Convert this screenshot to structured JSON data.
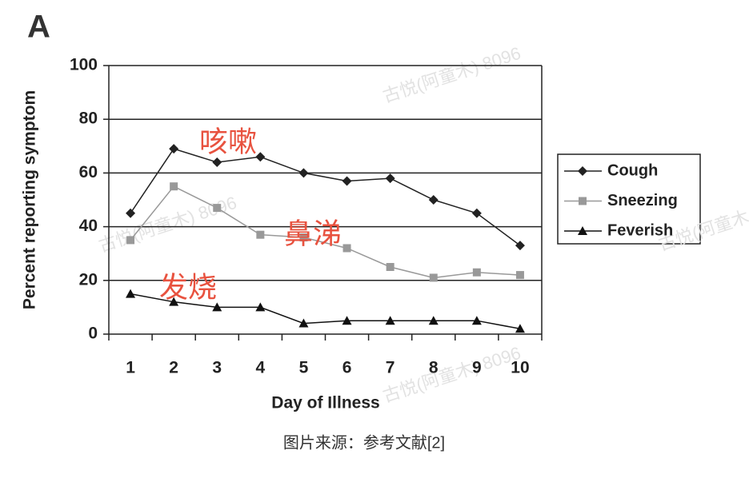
{
  "panel_label": "A",
  "chart_data": {
    "type": "line",
    "y_label": "Percent reporting symptom",
    "x_label": "Day of Illness",
    "categories": [
      "1",
      "2",
      "3",
      "4",
      "5",
      "6",
      "7",
      "8",
      "9",
      "10"
    ],
    "series": [
      {
        "name": "Cough",
        "color": "#222222",
        "marker": "diamond",
        "values": [
          45,
          69,
          64,
          66,
          60,
          57,
          58,
          50,
          45,
          33
        ]
      },
      {
        "name": "Sneezing",
        "color": "#999999",
        "marker": "square",
        "values": [
          35,
          55,
          47,
          37,
          36,
          32,
          25,
          21,
          23,
          22
        ]
      },
      {
        "name": "Feverish",
        "color": "#111111",
        "marker": "triangle",
        "values": [
          15,
          12,
          10,
          10,
          4,
          5,
          5,
          5,
          5,
          2
        ]
      }
    ],
    "ylim": [
      0,
      100
    ],
    "yticks": [
      0,
      20,
      40,
      60,
      80,
      100
    ],
    "grid": true,
    "legend": "right",
    "annotations": [
      "咳嗽",
      "鼻涕",
      "发烧"
    ],
    "watermarks": [
      "古悦(阿童木) 8096",
      "古悦(阿童木) 8096",
      "古悦(阿童木) 8096",
      "古悦(阿童木"
    ]
  },
  "caption": "图片来源：参考文献[2]"
}
